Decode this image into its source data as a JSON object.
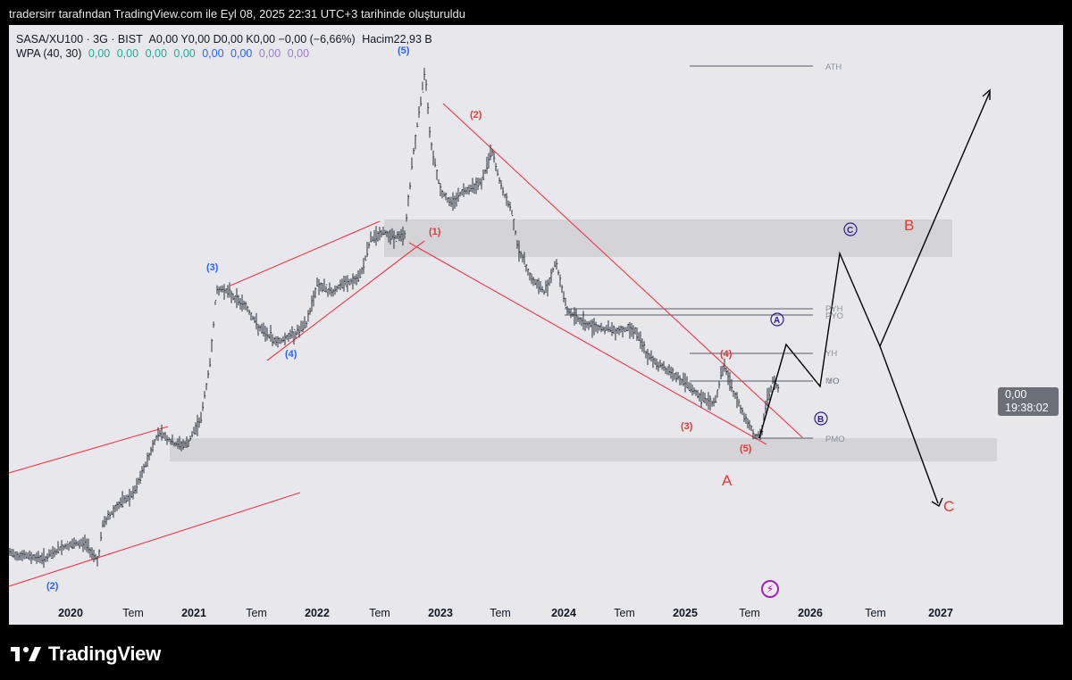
{
  "header": {
    "caption": "tradersirr tarafından TradingView.com ile Eyl 08, 2025 22:31 UTC+3 tarihinde oluşturuldu"
  },
  "legend": {
    "symbol": "SASA/XU100 · 3G · BIST",
    "ohlc": "A0,00  Y0,00  D0,00  K0,00  −0,00 (−6,66%)",
    "volume_label": "Hacim",
    "volume_value": "22,93 B",
    "indicator": "WPA (40, 30)",
    "indicator_values": [
      "0,00",
      "0,00",
      "0,00",
      "0,00",
      "0,00",
      "0,00",
      "0,00",
      "0,00"
    ]
  },
  "price_badge": {
    "value": "0,00",
    "countdown": "19:38:02"
  },
  "x_axis": {
    "labels": [
      {
        "text": "2020",
        "major": true
      },
      {
        "text": "Tem",
        "major": false
      },
      {
        "text": "2021",
        "major": true
      },
      {
        "text": "Tem",
        "major": false
      },
      {
        "text": "2022",
        "major": true
      },
      {
        "text": "Tem",
        "major": false
      },
      {
        "text": "2023",
        "major": true
      },
      {
        "text": "Tem",
        "major": false
      },
      {
        "text": "2024",
        "major": true
      },
      {
        "text": "Tem",
        "major": false
      },
      {
        "text": "2025",
        "major": true
      },
      {
        "text": "Tem",
        "major": false
      },
      {
        "text": "2026",
        "major": true
      },
      {
        "text": "Tem",
        "major": false
      },
      {
        "text": "2027",
        "major": true
      }
    ]
  },
  "level_labels": [
    "ATH",
    "PYH",
    "PYO",
    "YH",
    "MO",
    "YO",
    "PMO"
  ],
  "wave_labels": {
    "blue": [
      "(2)",
      "(3)",
      "(4)",
      "(5)"
    ],
    "red": [
      "(1)",
      "(2)",
      "(3)",
      "(4)",
      "(5)"
    ],
    "circled": [
      "A",
      "B",
      "C"
    ],
    "big": [
      "A",
      "B",
      "C"
    ]
  },
  "footer": {
    "brand": "TradingView"
  },
  "colors": {
    "chart_bg": "#e8e8ec",
    "candle": "#2a2e39",
    "trendline": "#f23645",
    "zone": "#d1d1d6",
    "wave_blue": "#2962ff",
    "wave_red": "#e53935",
    "circle_wave": "#311b92"
  }
}
